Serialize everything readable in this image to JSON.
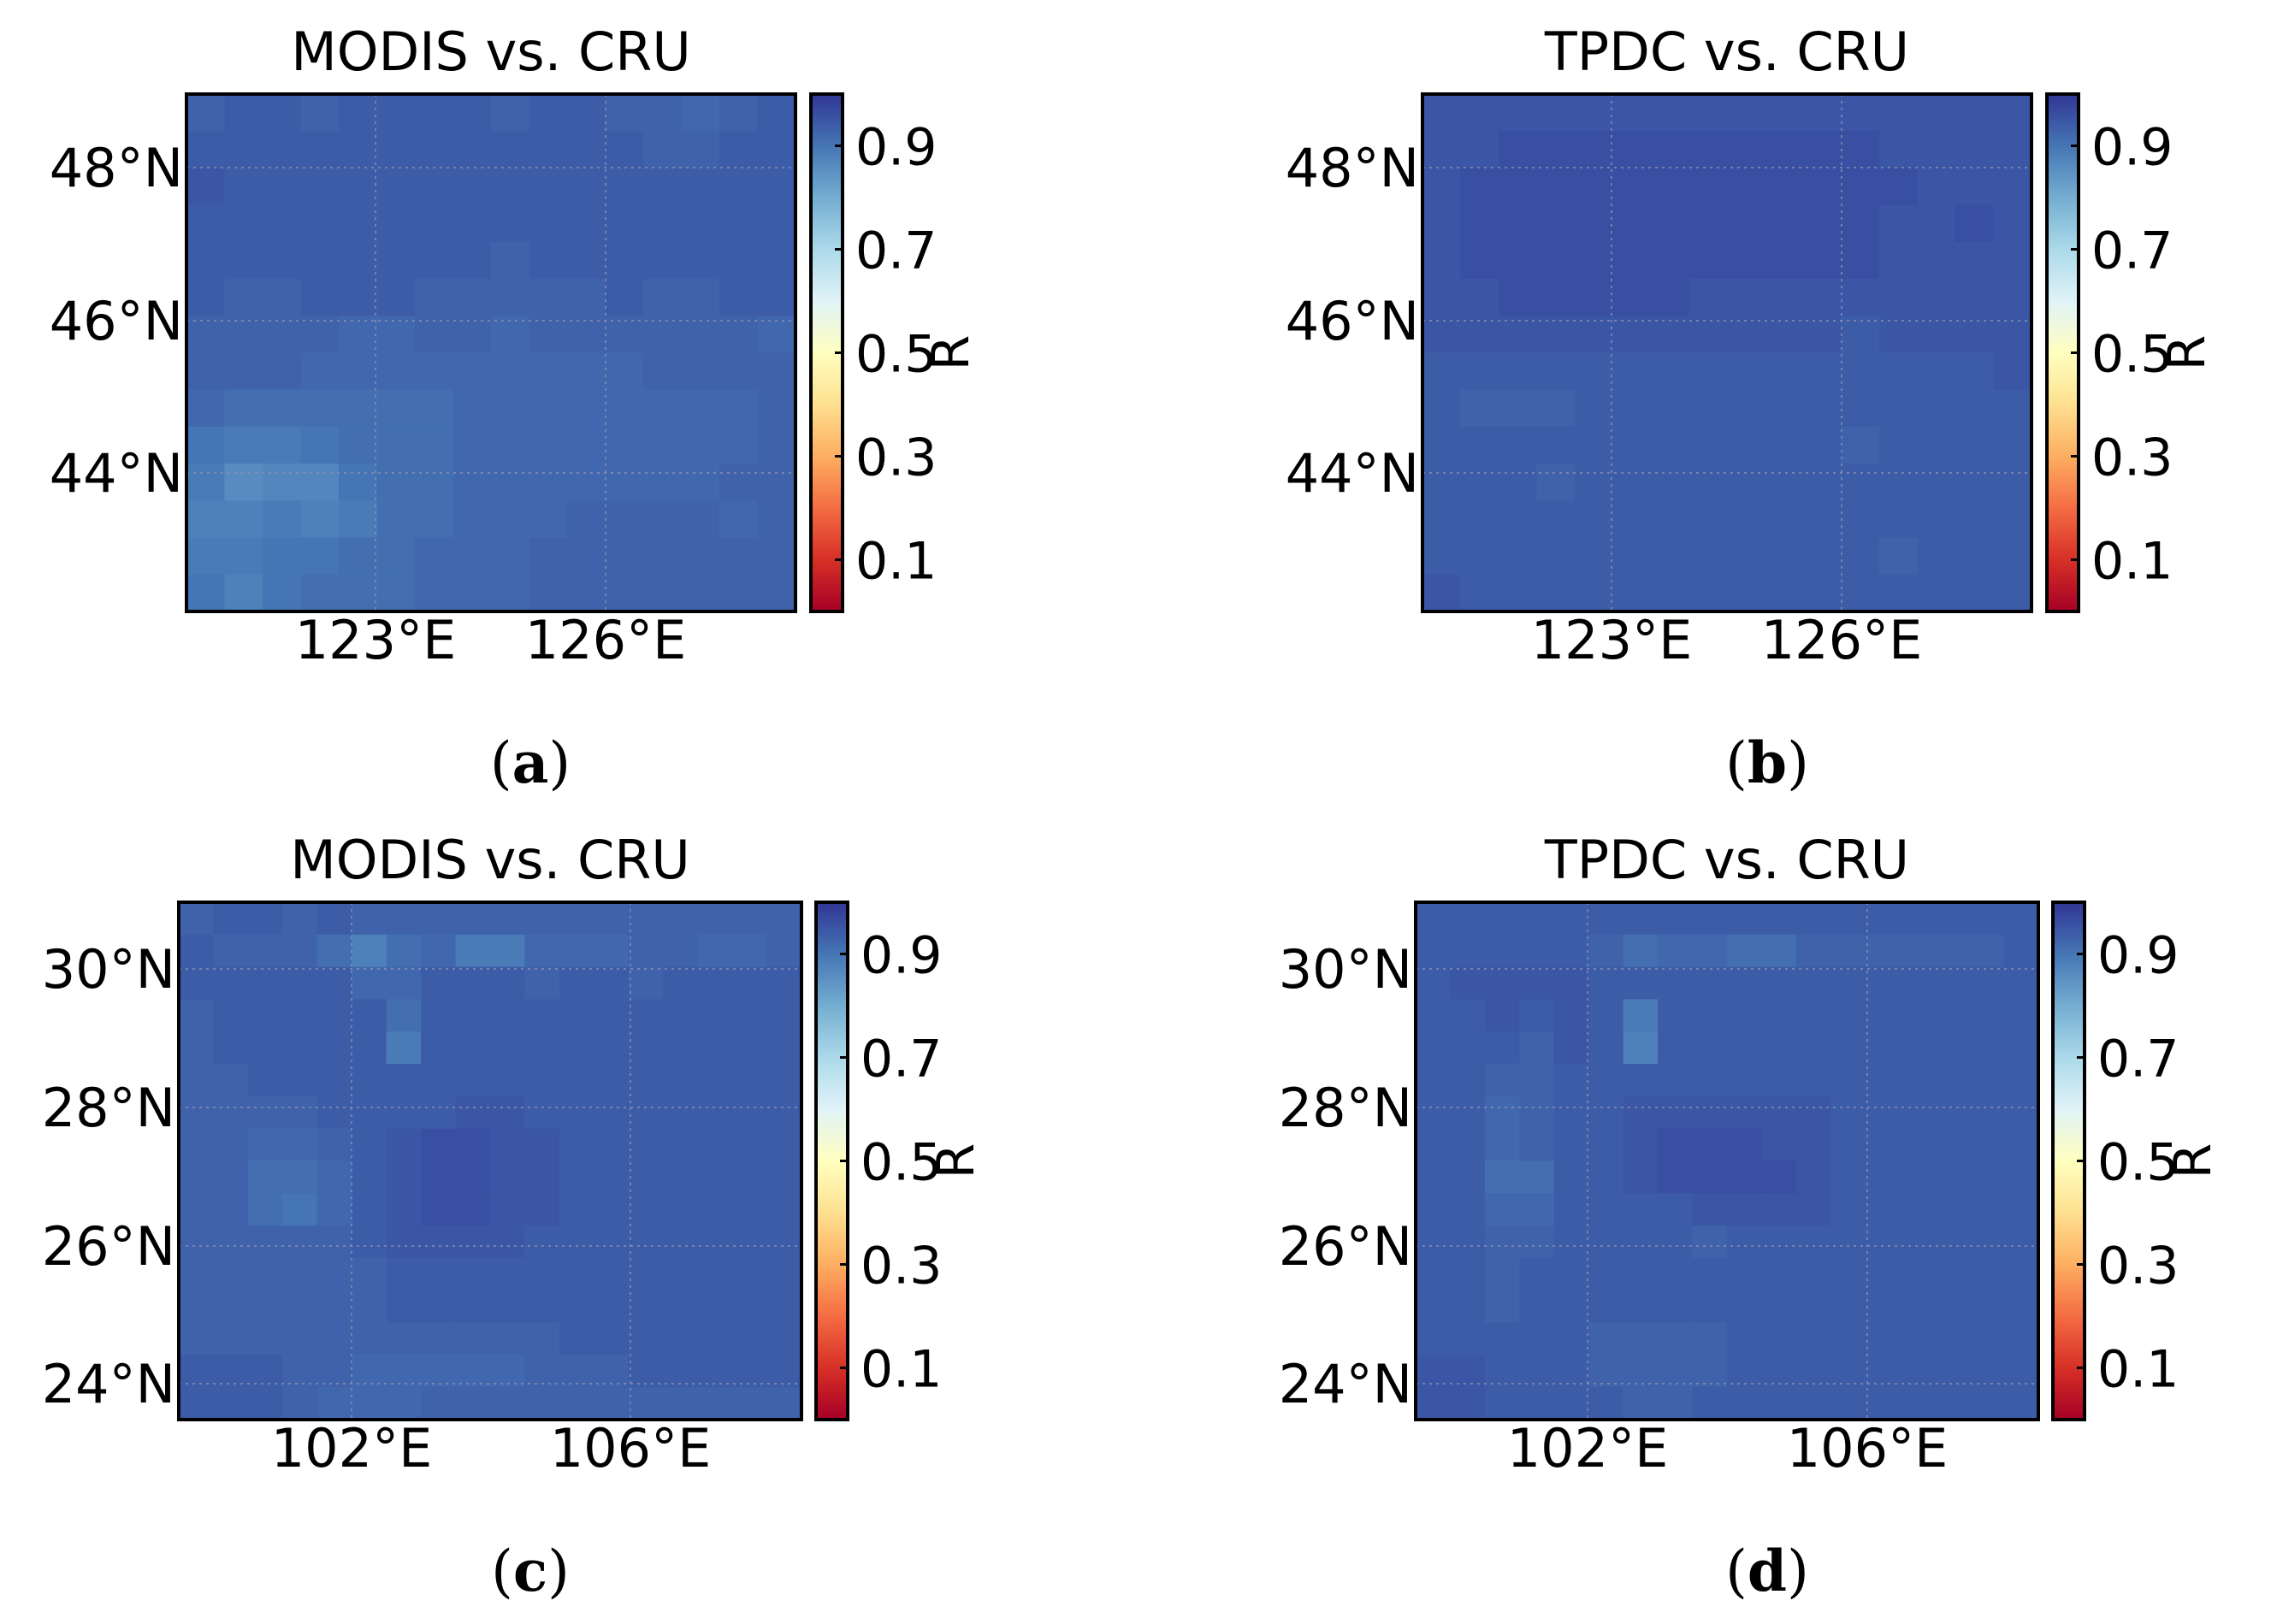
{
  "chart_data": [
    {
      "type": "heatmap",
      "panel_label": "a",
      "title": "MODIS vs. CRU",
      "x_ticks": [
        "123°E",
        "126°E"
      ],
      "y_ticks": [
        "48°N",
        "46°N",
        "44°N"
      ],
      "colorbar": {
        "label": "R",
        "ticks": [
          "0.9",
          "0.7",
          "0.5",
          "0.3",
          "0.1"
        ],
        "range": [
          0,
          1
        ]
      },
      "values": [
        [
          0.93,
          0.94,
          0.94,
          0.93,
          0.94,
          0.94,
          0.94,
          0.94,
          0.93,
          0.94,
          0.94,
          0.93,
          0.93,
          0.92,
          0.93,
          0.94
        ],
        [
          0.94,
          0.94,
          0.94,
          0.94,
          0.94,
          0.94,
          0.94,
          0.94,
          0.94,
          0.94,
          0.94,
          0.94,
          0.93,
          0.93,
          0.94,
          0.94
        ],
        [
          0.95,
          0.94,
          0.94,
          0.94,
          0.94,
          0.94,
          0.94,
          0.94,
          0.94,
          0.94,
          0.94,
          0.94,
          0.94,
          0.94,
          0.94,
          0.94
        ],
        [
          0.94,
          0.94,
          0.94,
          0.94,
          0.94,
          0.94,
          0.94,
          0.94,
          0.94,
          0.94,
          0.94,
          0.94,
          0.94,
          0.94,
          0.94,
          0.94
        ],
        [
          0.94,
          0.94,
          0.94,
          0.94,
          0.94,
          0.94,
          0.94,
          0.94,
          0.93,
          0.94,
          0.94,
          0.94,
          0.94,
          0.94,
          0.94,
          0.94
        ],
        [
          0.94,
          0.93,
          0.93,
          0.94,
          0.94,
          0.94,
          0.93,
          0.93,
          0.93,
          0.93,
          0.93,
          0.94,
          0.93,
          0.93,
          0.94,
          0.94
        ],
        [
          0.93,
          0.93,
          0.93,
          0.93,
          0.92,
          0.92,
          0.93,
          0.93,
          0.92,
          0.93,
          0.93,
          0.93,
          0.93,
          0.93,
          0.93,
          0.92
        ],
        [
          0.93,
          0.93,
          0.93,
          0.92,
          0.92,
          0.92,
          0.92,
          0.92,
          0.92,
          0.92,
          0.92,
          0.92,
          0.93,
          0.93,
          0.93,
          0.93
        ],
        [
          0.92,
          0.91,
          0.91,
          0.91,
          0.91,
          0.91,
          0.91,
          0.92,
          0.92,
          0.92,
          0.92,
          0.92,
          0.92,
          0.92,
          0.92,
          0.93
        ],
        [
          0.9,
          0.89,
          0.89,
          0.9,
          0.91,
          0.91,
          0.91,
          0.92,
          0.92,
          0.92,
          0.92,
          0.92,
          0.92,
          0.92,
          0.92,
          0.93
        ],
        [
          0.89,
          0.86,
          0.87,
          0.87,
          0.9,
          0.91,
          0.91,
          0.92,
          0.92,
          0.92,
          0.92,
          0.92,
          0.92,
          0.92,
          0.93,
          0.93
        ],
        [
          0.88,
          0.88,
          0.89,
          0.88,
          0.89,
          0.91,
          0.91,
          0.92,
          0.92,
          0.92,
          0.93,
          0.93,
          0.93,
          0.93,
          0.92,
          0.93
        ],
        [
          0.89,
          0.89,
          0.9,
          0.9,
          0.91,
          0.91,
          0.92,
          0.92,
          0.92,
          0.93,
          0.93,
          0.93,
          0.93,
          0.93,
          0.93,
          0.93
        ],
        [
          0.9,
          0.88,
          0.9,
          0.91,
          0.91,
          0.91,
          0.92,
          0.92,
          0.92,
          0.93,
          0.93,
          0.93,
          0.93,
          0.93,
          0.93,
          0.93
        ]
      ]
    },
    {
      "type": "heatmap",
      "panel_label": "b",
      "title": "TPDC vs. CRU",
      "x_ticks": [
        "123°E",
        "126°E"
      ],
      "y_ticks": [
        "48°N",
        "46°N",
        "44°N"
      ],
      "colorbar": {
        "label": "R",
        "ticks": [
          "0.9",
          "0.7",
          "0.5",
          "0.3",
          "0.1"
        ],
        "range": [
          0,
          1
        ]
      },
      "values": [
        [
          0.95,
          0.95,
          0.95,
          0.95,
          0.95,
          0.95,
          0.95,
          0.95,
          0.95,
          0.95,
          0.95,
          0.95,
          0.95,
          0.95,
          0.95,
          0.95
        ],
        [
          0.95,
          0.95,
          0.96,
          0.96,
          0.96,
          0.96,
          0.96,
          0.96,
          0.96,
          0.96,
          0.96,
          0.96,
          0.95,
          0.95,
          0.95,
          0.95
        ],
        [
          0.95,
          0.96,
          0.96,
          0.96,
          0.96,
          0.96,
          0.96,
          0.96,
          0.96,
          0.96,
          0.96,
          0.96,
          0.96,
          0.95,
          0.95,
          0.95
        ],
        [
          0.95,
          0.96,
          0.96,
          0.96,
          0.96,
          0.96,
          0.96,
          0.96,
          0.96,
          0.96,
          0.96,
          0.96,
          0.95,
          0.95,
          0.96,
          0.95
        ],
        [
          0.95,
          0.96,
          0.96,
          0.96,
          0.96,
          0.96,
          0.96,
          0.96,
          0.96,
          0.96,
          0.96,
          0.96,
          0.95,
          0.95,
          0.95,
          0.95
        ],
        [
          0.95,
          0.95,
          0.96,
          0.96,
          0.96,
          0.96,
          0.96,
          0.95,
          0.95,
          0.95,
          0.95,
          0.95,
          0.95,
          0.95,
          0.95,
          0.95
        ],
        [
          0.95,
          0.95,
          0.95,
          0.95,
          0.95,
          0.95,
          0.95,
          0.95,
          0.95,
          0.95,
          0.95,
          0.94,
          0.95,
          0.95,
          0.95,
          0.95
        ],
        [
          0.94,
          0.94,
          0.94,
          0.94,
          0.94,
          0.94,
          0.94,
          0.94,
          0.94,
          0.94,
          0.94,
          0.94,
          0.94,
          0.94,
          0.94,
          0.95
        ],
        [
          0.94,
          0.93,
          0.93,
          0.93,
          0.94,
          0.94,
          0.94,
          0.94,
          0.94,
          0.94,
          0.94,
          0.94,
          0.94,
          0.94,
          0.94,
          0.94
        ],
        [
          0.94,
          0.94,
          0.94,
          0.94,
          0.94,
          0.94,
          0.94,
          0.94,
          0.94,
          0.94,
          0.94,
          0.93,
          0.94,
          0.94,
          0.94,
          0.94
        ],
        [
          0.94,
          0.94,
          0.94,
          0.93,
          0.94,
          0.94,
          0.94,
          0.94,
          0.94,
          0.94,
          0.94,
          0.94,
          0.94,
          0.94,
          0.94,
          0.94
        ],
        [
          0.94,
          0.94,
          0.94,
          0.94,
          0.94,
          0.94,
          0.94,
          0.94,
          0.94,
          0.94,
          0.94,
          0.94,
          0.94,
          0.94,
          0.94,
          0.94
        ],
        [
          0.94,
          0.94,
          0.94,
          0.94,
          0.94,
          0.94,
          0.94,
          0.94,
          0.94,
          0.94,
          0.94,
          0.94,
          0.93,
          0.94,
          0.94,
          0.94
        ],
        [
          0.95,
          0.94,
          0.94,
          0.94,
          0.94,
          0.94,
          0.94,
          0.94,
          0.94,
          0.94,
          0.94,
          0.94,
          0.94,
          0.94,
          0.94,
          0.94
        ]
      ]
    },
    {
      "type": "heatmap",
      "panel_label": "c",
      "title": "MODIS vs. CRU",
      "x_ticks": [
        "102°E",
        "106°E"
      ],
      "y_ticks": [
        "30°N",
        "28°N",
        "26°N",
        "24°N"
      ],
      "colorbar": {
        "label": "R",
        "ticks": [
          "0.9",
          "0.7",
          "0.5",
          "0.3",
          "0.1"
        ],
        "range": [
          0,
          1
        ]
      },
      "values": [
        [
          0.93,
          0.94,
          0.94,
          0.93,
          0.94,
          0.93,
          0.93,
          0.93,
          0.93,
          0.93,
          0.93,
          0.93,
          0.93,
          0.93,
          0.93,
          0.93,
          0.93,
          0.93
        ],
        [
          0.94,
          0.93,
          0.93,
          0.93,
          0.91,
          0.88,
          0.91,
          0.92,
          0.89,
          0.89,
          0.92,
          0.92,
          0.92,
          0.93,
          0.93,
          0.92,
          0.92,
          0.93
        ],
        [
          0.94,
          0.94,
          0.94,
          0.94,
          0.94,
          0.92,
          0.92,
          0.94,
          0.94,
          0.94,
          0.93,
          0.94,
          0.94,
          0.93,
          0.94,
          0.94,
          0.94,
          0.94
        ],
        [
          0.93,
          0.94,
          0.94,
          0.94,
          0.94,
          0.94,
          0.91,
          0.94,
          0.94,
          0.94,
          0.94,
          0.94,
          0.94,
          0.94,
          0.94,
          0.94,
          0.94,
          0.94
        ],
        [
          0.93,
          0.94,
          0.94,
          0.94,
          0.94,
          0.94,
          0.89,
          0.94,
          0.94,
          0.94,
          0.94,
          0.94,
          0.94,
          0.94,
          0.94,
          0.94,
          0.94,
          0.94
        ],
        [
          0.93,
          0.93,
          0.94,
          0.94,
          0.94,
          0.94,
          0.94,
          0.94,
          0.94,
          0.94,
          0.94,
          0.94,
          0.94,
          0.94,
          0.94,
          0.94,
          0.94,
          0.94
        ],
        [
          0.93,
          0.93,
          0.93,
          0.93,
          0.94,
          0.94,
          0.94,
          0.94,
          0.95,
          0.95,
          0.94,
          0.94,
          0.94,
          0.94,
          0.94,
          0.94,
          0.94,
          0.94
        ],
        [
          0.93,
          0.93,
          0.92,
          0.92,
          0.93,
          0.94,
          0.95,
          0.96,
          0.96,
          0.95,
          0.95,
          0.94,
          0.94,
          0.94,
          0.94,
          0.94,
          0.94,
          0.94
        ],
        [
          0.93,
          0.93,
          0.91,
          0.91,
          0.92,
          0.94,
          0.95,
          0.96,
          0.96,
          0.95,
          0.95,
          0.94,
          0.94,
          0.94,
          0.94,
          0.94,
          0.94,
          0.94
        ],
        [
          0.93,
          0.93,
          0.91,
          0.9,
          0.92,
          0.94,
          0.95,
          0.96,
          0.96,
          0.95,
          0.95,
          0.94,
          0.94,
          0.94,
          0.94,
          0.94,
          0.94,
          0.94
        ],
        [
          0.93,
          0.93,
          0.93,
          0.93,
          0.93,
          0.94,
          0.95,
          0.95,
          0.95,
          0.95,
          0.94,
          0.94,
          0.94,
          0.94,
          0.94,
          0.94,
          0.94,
          0.94
        ],
        [
          0.93,
          0.93,
          0.93,
          0.93,
          0.93,
          0.93,
          0.94,
          0.94,
          0.94,
          0.94,
          0.94,
          0.94,
          0.94,
          0.94,
          0.94,
          0.94,
          0.94,
          0.94
        ],
        [
          0.93,
          0.93,
          0.93,
          0.93,
          0.93,
          0.93,
          0.94,
          0.94,
          0.94,
          0.94,
          0.94,
          0.94,
          0.94,
          0.94,
          0.94,
          0.94,
          0.94,
          0.94
        ],
        [
          0.93,
          0.93,
          0.93,
          0.93,
          0.93,
          0.93,
          0.93,
          0.93,
          0.93,
          0.93,
          0.93,
          0.94,
          0.94,
          0.94,
          0.94,
          0.94,
          0.94,
          0.94
        ],
        [
          0.94,
          0.94,
          0.94,
          0.93,
          0.93,
          0.92,
          0.92,
          0.92,
          0.92,
          0.92,
          0.93,
          0.93,
          0.93,
          0.94,
          0.94,
          0.94,
          0.94,
          0.94
        ],
        [
          0.94,
          0.94,
          0.94,
          0.93,
          0.92,
          0.92,
          0.92,
          0.93,
          0.93,
          0.93,
          0.93,
          0.93,
          0.93,
          0.93,
          0.93,
          0.93,
          0.93,
          0.93
        ]
      ]
    },
    {
      "type": "heatmap",
      "panel_label": "d",
      "title": "TPDC vs. CRU",
      "x_ticks": [
        "102°E",
        "106°E"
      ],
      "y_ticks": [
        "30°N",
        "28°N",
        "26°N",
        "24°N"
      ],
      "colorbar": {
        "label": "R",
        "ticks": [
          "0.9",
          "0.7",
          "0.5",
          "0.3",
          "0.1"
        ],
        "range": [
          0,
          1
        ]
      },
      "values": [
        [
          0.94,
          0.94,
          0.94,
          0.94,
          0.94,
          0.94,
          0.94,
          0.94,
          0.94,
          0.94,
          0.94,
          0.94,
          0.94,
          0.94,
          0.94,
          0.94,
          0.94,
          0.94
        ],
        [
          0.94,
          0.94,
          0.94,
          0.94,
          0.94,
          0.93,
          0.91,
          0.92,
          0.92,
          0.91,
          0.91,
          0.93,
          0.93,
          0.93,
          0.93,
          0.93,
          0.93,
          0.94
        ],
        [
          0.94,
          0.95,
          0.95,
          0.95,
          0.95,
          0.94,
          0.94,
          0.94,
          0.94,
          0.94,
          0.94,
          0.94,
          0.94,
          0.94,
          0.94,
          0.94,
          0.94,
          0.94
        ],
        [
          0.94,
          0.94,
          0.95,
          0.94,
          0.95,
          0.94,
          0.89,
          0.94,
          0.94,
          0.94,
          0.94,
          0.94,
          0.94,
          0.94,
          0.94,
          0.94,
          0.94,
          0.94
        ],
        [
          0.94,
          0.94,
          0.94,
          0.93,
          0.95,
          0.94,
          0.88,
          0.94,
          0.94,
          0.94,
          0.94,
          0.94,
          0.94,
          0.94,
          0.94,
          0.94,
          0.94,
          0.94
        ],
        [
          0.94,
          0.94,
          0.93,
          0.93,
          0.94,
          0.94,
          0.94,
          0.94,
          0.94,
          0.94,
          0.94,
          0.94,
          0.94,
          0.94,
          0.94,
          0.94,
          0.94,
          0.94
        ],
        [
          0.94,
          0.94,
          0.92,
          0.93,
          0.94,
          0.94,
          0.95,
          0.95,
          0.95,
          0.95,
          0.95,
          0.95,
          0.94,
          0.94,
          0.94,
          0.94,
          0.94,
          0.94
        ],
        [
          0.94,
          0.94,
          0.92,
          0.93,
          0.94,
          0.94,
          0.95,
          0.96,
          0.96,
          0.96,
          0.95,
          0.95,
          0.94,
          0.94,
          0.94,
          0.94,
          0.94,
          0.94
        ],
        [
          0.94,
          0.94,
          0.91,
          0.91,
          0.94,
          0.94,
          0.95,
          0.96,
          0.96,
          0.96,
          0.96,
          0.95,
          0.94,
          0.94,
          0.94,
          0.94,
          0.94,
          0.94
        ],
        [
          0.94,
          0.94,
          0.92,
          0.92,
          0.94,
          0.94,
          0.94,
          0.94,
          0.95,
          0.95,
          0.95,
          0.95,
          0.94,
          0.94,
          0.94,
          0.94,
          0.94,
          0.94
        ],
        [
          0.94,
          0.94,
          0.93,
          0.93,
          0.94,
          0.94,
          0.94,
          0.94,
          0.93,
          0.94,
          0.94,
          0.94,
          0.94,
          0.94,
          0.94,
          0.94,
          0.94,
          0.94
        ],
        [
          0.94,
          0.94,
          0.93,
          0.94,
          0.94,
          0.94,
          0.94,
          0.94,
          0.94,
          0.94,
          0.94,
          0.94,
          0.94,
          0.94,
          0.94,
          0.94,
          0.94,
          0.94
        ],
        [
          0.94,
          0.94,
          0.93,
          0.94,
          0.94,
          0.94,
          0.94,
          0.94,
          0.94,
          0.94,
          0.94,
          0.94,
          0.94,
          0.94,
          0.94,
          0.94,
          0.94,
          0.94
        ],
        [
          0.94,
          0.94,
          0.94,
          0.94,
          0.94,
          0.93,
          0.93,
          0.93,
          0.93,
          0.94,
          0.94,
          0.94,
          0.94,
          0.94,
          0.94,
          0.94,
          0.94,
          0.94
        ],
        [
          0.95,
          0.95,
          0.94,
          0.94,
          0.94,
          0.93,
          0.93,
          0.93,
          0.93,
          0.94,
          0.94,
          0.94,
          0.94,
          0.94,
          0.94,
          0.94,
          0.94,
          0.94
        ],
        [
          0.95,
          0.95,
          0.94,
          0.94,
          0.94,
          0.94,
          0.93,
          0.93,
          0.94,
          0.94,
          0.94,
          0.94,
          0.94,
          0.94,
          0.94,
          0.94,
          0.94,
          0.94
        ]
      ]
    }
  ]
}
